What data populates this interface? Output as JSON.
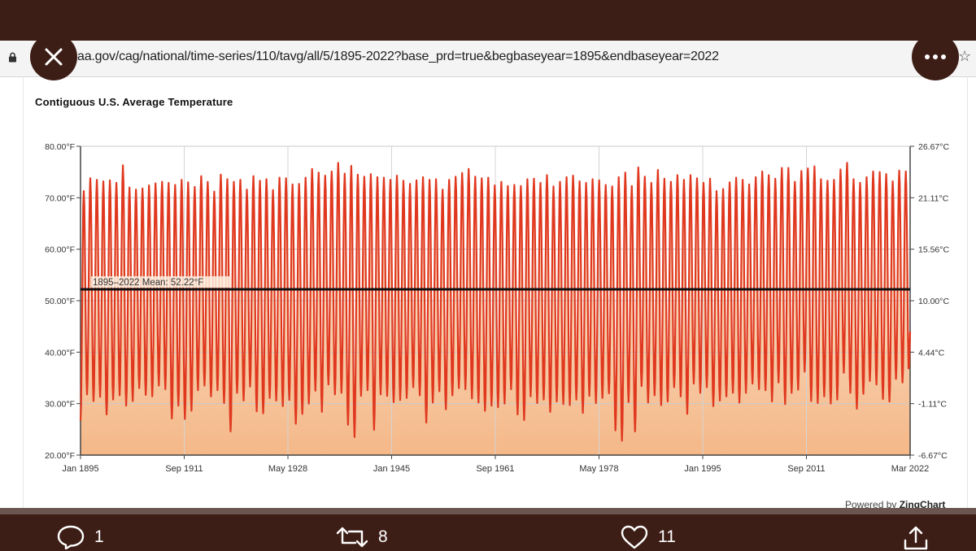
{
  "browser": {
    "url": "aa.gov/cag/national/time-series/110/tavg/all/5/1895-2022?base_prd=true&begbaseyear=1895&endbaseyear=2022",
    "close_icon": "close-icon",
    "more_icon": "more-icon"
  },
  "chart_data": {
    "type": "line",
    "title": "Contiguous U.S. Average Temperature",
    "x_tick_labels": [
      "Jan 1895",
      "Sep 1911",
      "May 1928",
      "Jan 1945",
      "Sep 1961",
      "May 1978",
      "Jan 1995",
      "Sep 2011",
      "Mar 2022"
    ],
    "y_left_ticks": [
      "20.00°F",
      "30.00°F",
      "40.00°F",
      "50.00°F",
      "60.00°F",
      "70.00°F",
      "80.00°F"
    ],
    "y_right_ticks": [
      "-6.67°C",
      "-1.11°C",
      "4.44°C",
      "10.00°C",
      "15.56°C",
      "21.11°C",
      "26.67°C"
    ],
    "ylim": [
      20,
      80
    ],
    "x_range": [
      "1895-01",
      "2022-03"
    ],
    "grid": true,
    "line_color": "#e0381f",
    "area_colors": [
      "#f6d2ad",
      "#f4b482"
    ],
    "mean": {
      "value": 52.22,
      "label": "1895–2022 Mean: 52.22°F",
      "color": "#111111"
    },
    "series": [
      {
        "years": [
          1895,
          1896,
          1897,
          1898,
          1899,
          1900,
          1901,
          1902,
          1903,
          1904,
          1905,
          1906,
          1907,
          1908,
          1909,
          1910,
          1911,
          1912,
          1913,
          1914,
          1915,
          1916,
          1917,
          1918,
          1919,
          1920,
          1921,
          1922,
          1923,
          1924,
          1925,
          1926,
          1927,
          1928,
          1929,
          1930,
          1931,
          1932,
          1933,
          1934,
          1935,
          1936,
          1937,
          1938,
          1939,
          1940,
          1941,
          1942,
          1943,
          1944,
          1945,
          1946,
          1947,
          1948,
          1949,
          1950,
          1951,
          1952,
          1953,
          1954,
          1955,
          1956,
          1957,
          1958,
          1959,
          1960,
          1961,
          1962,
          1963,
          1964,
          1965,
          1966,
          1967,
          1968,
          1969,
          1970,
          1971,
          1972,
          1973,
          1974,
          1975,
          1976,
          1977,
          1978,
          1979,
          1980,
          1981,
          1982,
          1983,
          1984,
          1985,
          1986,
          1987,
          1988,
          1989,
          1990,
          1991,
          1992,
          1993,
          1994,
          1995,
          1996,
          1997,
          1998,
          1999,
          2000,
          2001,
          2002,
          2003,
          2004,
          2005,
          2006,
          2007,
          2008,
          2009,
          2010,
          2011,
          2012,
          2013,
          2014,
          2015,
          2016,
          2017,
          2018,
          2019,
          2020,
          2021
        ],
        "july_high_F": [
          71.3,
          73.8,
          73.5,
          73.2,
          73.4,
          72.9,
          76.3,
          72.0,
          71.6,
          71.8,
          72.4,
          72.8,
          73.1,
          72.9,
          72.5,
          73.5,
          73.0,
          72.1,
          74.2,
          73.1,
          71.2,
          74.5,
          73.6,
          73.1,
          73.5,
          71.6,
          74.2,
          73.3,
          73.6,
          71.5,
          73.9,
          73.8,
          72.6,
          72.7,
          73.9,
          75.6,
          74.9,
          74.3,
          75.1,
          76.8,
          74.7,
          76.2,
          74.5,
          74.1,
          74.6,
          74.0,
          73.9,
          73.5,
          74.3,
          73.3,
          72.7,
          73.4,
          74.0,
          73.5,
          73.6,
          71.6,
          73.5,
          74.1,
          74.8,
          75.6,
          74.1,
          73.8,
          73.9,
          72.4,
          73.1,
          72.3,
          72.5,
          72.3,
          73.6,
          73.7,
          72.9,
          74.4,
          72.2,
          73.1,
          74.0,
          74.3,
          73.2,
          72.9,
          73.6,
          73.4,
          72.5,
          72.2,
          74.0,
          74.9,
          72.3,
          75.9,
          74.1,
          72.9,
          75.4,
          73.7,
          73.1,
          74.4,
          73.5,
          74.4,
          73.8,
          72.9,
          73.7,
          71.3,
          71.7,
          73.0,
          73.9,
          73.5,
          72.6,
          74.0,
          75.1,
          74.4,
          73.7,
          75.8,
          75.8,
          73.1,
          75.2,
          75.7,
          76.1,
          73.6,
          73.3,
          73.5,
          75.5,
          76.8,
          73.6,
          72.9,
          74.0,
          75.1,
          75.0,
          74.6,
          73.2,
          75.3,
          75.1
        ],
        "january_low_F": [
          26.7,
          31.8,
          30.5,
          31.3,
          27.9,
          30.8,
          31.6,
          29.6,
          30.5,
          33.0,
          31.7,
          31.4,
          33.5,
          32.8,
          27.1,
          29.6,
          27.0,
          28.6,
          32.6,
          33.5,
          31.4,
          32.6,
          30.1,
          24.6,
          32.1,
          30.6,
          33.3,
          28.5,
          28.1,
          31.1,
          30.6,
          29.5,
          30.7,
          26.1,
          28.0,
          30.0,
          32.5,
          28.4,
          33.7,
          31.8,
          32.1,
          25.9,
          23.5,
          31.5,
          32.6,
          24.9,
          31.8,
          31.5,
          30.3,
          30.7,
          31.1,
          33.2,
          31.6,
          26.3,
          30.2,
          32.4,
          28.9,
          31.6,
          33.0,
          32.8,
          31.0,
          30.2,
          28.6,
          29.6,
          29.3,
          30.0,
          32.8,
          27.9,
          26.8,
          31.4,
          30.1,
          30.8,
          28.4,
          30.4,
          29.9,
          29.7,
          30.8,
          28.2,
          31.5,
          30.1,
          31.1,
          32.0,
          24.8,
          22.8,
          30.3,
          24.6,
          33.4,
          30.2,
          31.6,
          29.7,
          30.4,
          33.2,
          31.4,
          28.0,
          33.9,
          32.1,
          33.2,
          29.5,
          30.6,
          31.4,
          32.1,
          30.2,
          32.1,
          33.9,
          32.8,
          32.6,
          30.4,
          34.1,
          29.9,
          32.1,
          32.7,
          36.2,
          30.5,
          30.1,
          31.4,
          30.0,
          30.8,
          36.0,
          32.1,
          29.0,
          31.9,
          34.4,
          33.7,
          30.9,
          30.4,
          34.8,
          34.1
        ],
        "last_value_F": 44.0
      }
    ]
  },
  "footer": {
    "powered_prefix": "Powered by",
    "powered_brand": "ZingChart"
  },
  "actions": {
    "reply_count": "1",
    "retweet_count": "8",
    "like_count": "11"
  },
  "colors": {
    "frame": "#3d1e16",
    "url_bar": "#f4f4f4"
  }
}
